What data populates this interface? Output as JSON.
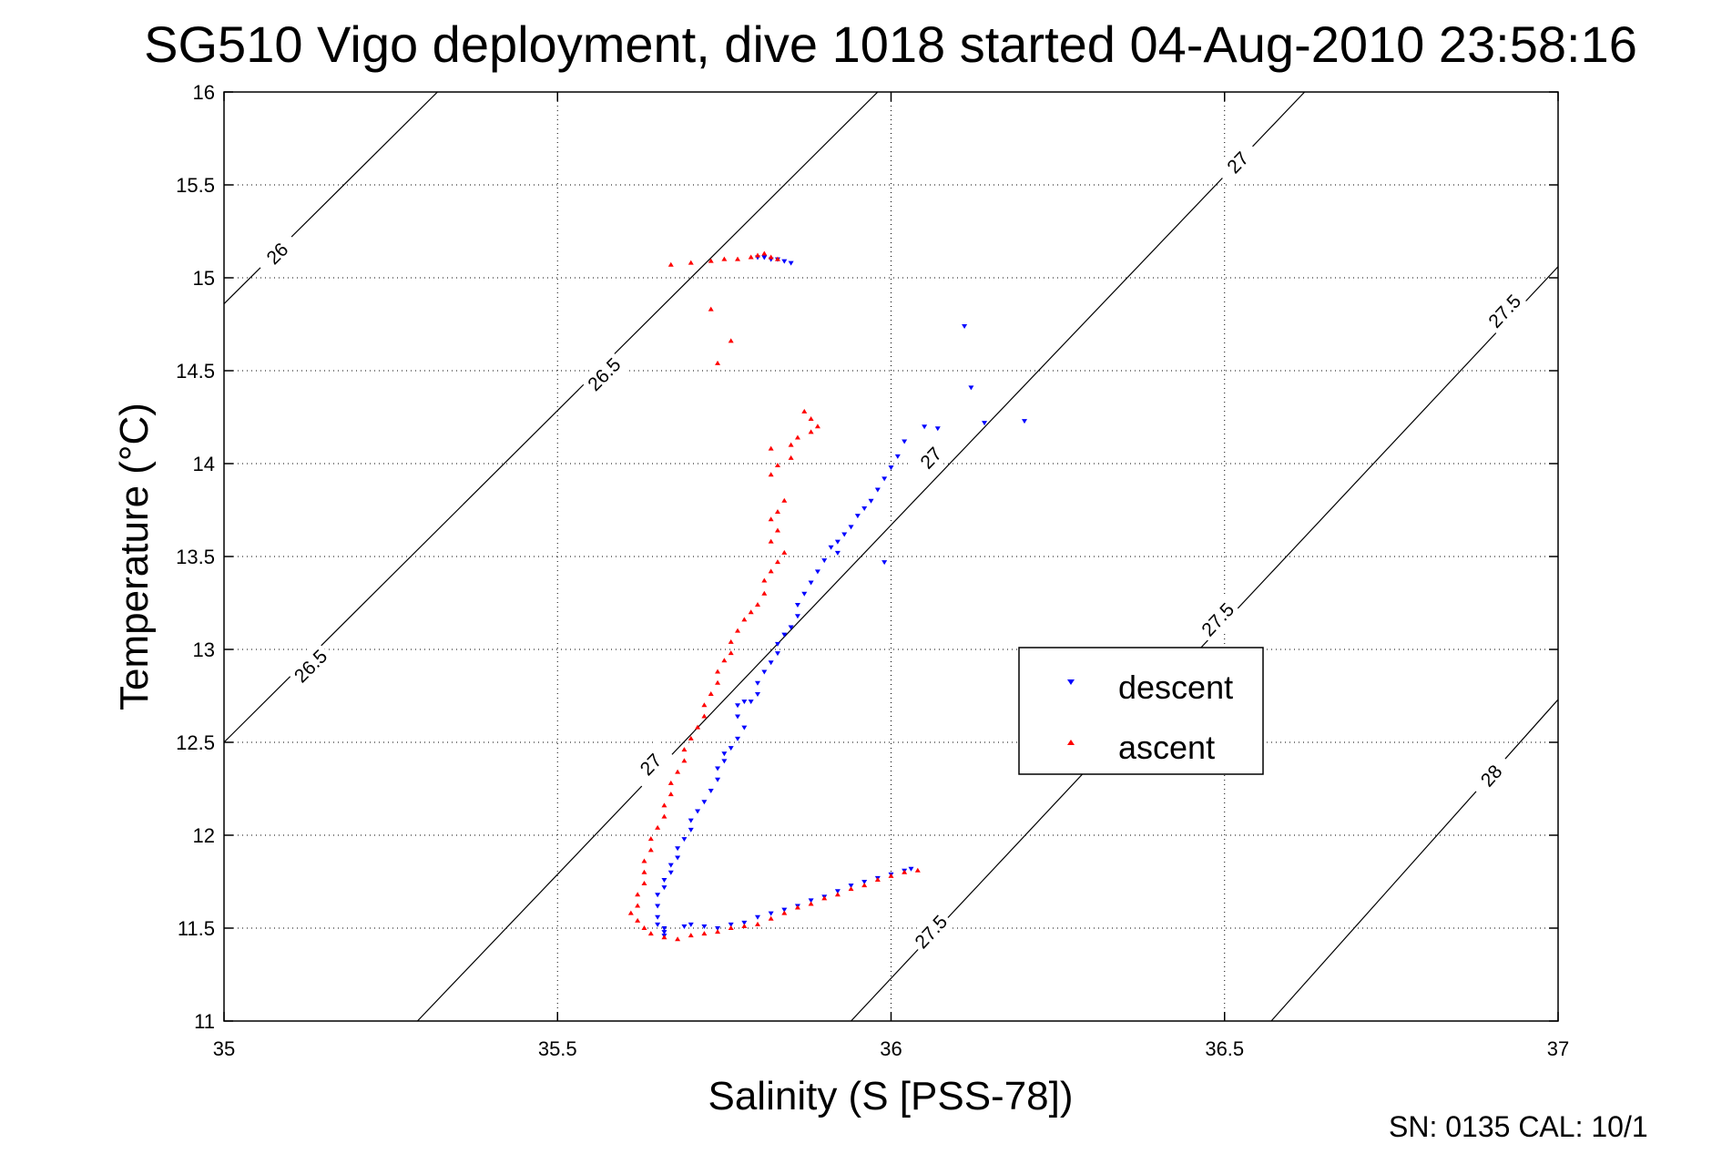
{
  "chart_data": {
    "type": "scatter",
    "title": "SG510 Vigo deployment, dive 1018 started 04-Aug-2010 23:58:16",
    "xlabel": "Salinity (S [PSS-78])",
    "ylabel": "Temperature (°C)",
    "xlim": [
      35,
      37
    ],
    "ylim": [
      11,
      16
    ],
    "x_ticks": [
      "35",
      "35.5",
      "36",
      "36.5",
      "37"
    ],
    "y_ticks": [
      "11",
      "11.5",
      "12",
      "12.5",
      "13",
      "13.5",
      "14",
      "14.5",
      "15",
      "15.5",
      "16"
    ],
    "grid": true,
    "legend_position": "right",
    "footer": "SN: 0135  CAL: 10/1",
    "density_contours": [
      {
        "label": "26",
        "points": [
          [
            35.0,
            14.86
          ],
          [
            35.32,
            16.0
          ]
        ],
        "label_at": [
          35.08,
          15.13
        ]
      },
      {
        "label": "26.5",
        "points": [
          [
            35.0,
            12.5
          ],
          [
            35.98,
            16.0
          ]
        ],
        "label_at": [
          35.13,
          12.91
        ],
        "label_at2": [
          35.57,
          14.48
        ]
      },
      {
        "label": "27",
        "points": [
          [
            35.29,
            11.0
          ],
          [
            36.62,
            16.0
          ]
        ],
        "label_at": [
          35.64,
          12.38
        ],
        "label_at2": [
          36.06,
          14.03
        ],
        "label_at3": [
          36.52,
          15.62
        ]
      },
      {
        "label": "27.5",
        "points": [
          [
            35.94,
            11.0
          ],
          [
            37.0,
            15.06
          ]
        ],
        "label_at": [
          36.06,
          11.48
        ],
        "label_at2": [
          36.49,
          13.16
        ],
        "label_at3": [
          36.92,
          14.82
        ]
      },
      {
        "label": "28",
        "points": [
          [
            36.57,
            11.0
          ],
          [
            37.0,
            12.73
          ]
        ],
        "label_at": [
          36.9,
          12.32
        ]
      }
    ],
    "series": [
      {
        "name": "descent",
        "color": "#0000ff",
        "marker": "triangle-down",
        "points": [
          [
            35.85,
            15.08
          ],
          [
            35.84,
            15.09
          ],
          [
            35.83,
            15.1
          ],
          [
            35.82,
            15.1
          ],
          [
            35.81,
            15.11
          ],
          [
            35.8,
            15.11
          ],
          [
            36.11,
            14.74
          ],
          [
            36.12,
            14.41
          ],
          [
            36.14,
            14.22
          ],
          [
            36.2,
            14.23
          ],
          [
            36.07,
            14.19
          ],
          [
            36.05,
            14.2
          ],
          [
            36.02,
            14.12
          ],
          [
            36.01,
            14.04
          ],
          [
            36.0,
            13.98
          ],
          [
            35.99,
            13.92
          ],
          [
            35.98,
            13.86
          ],
          [
            35.97,
            13.8
          ],
          [
            35.96,
            13.76
          ],
          [
            35.95,
            13.72
          ],
          [
            35.94,
            13.66
          ],
          [
            35.93,
            13.62
          ],
          [
            35.92,
            13.58
          ],
          [
            35.91,
            13.55
          ],
          [
            35.92,
            13.52
          ],
          [
            35.9,
            13.48
          ],
          [
            35.89,
            13.42
          ],
          [
            35.88,
            13.36
          ],
          [
            35.99,
            13.47
          ],
          [
            35.87,
            13.3
          ],
          [
            35.86,
            13.24
          ],
          [
            35.86,
            13.18
          ],
          [
            35.85,
            13.12
          ],
          [
            35.84,
            13.08
          ],
          [
            35.83,
            13.03
          ],
          [
            35.83,
            12.98
          ],
          [
            35.82,
            12.93
          ],
          [
            35.81,
            12.88
          ],
          [
            35.8,
            12.82
          ],
          [
            35.8,
            12.76
          ],
          [
            35.79,
            12.72
          ],
          [
            35.78,
            12.72
          ],
          [
            35.77,
            12.7
          ],
          [
            35.77,
            12.64
          ],
          [
            35.78,
            12.58
          ],
          [
            35.77,
            12.52
          ],
          [
            35.76,
            12.47
          ],
          [
            35.75,
            12.44
          ],
          [
            35.75,
            12.4
          ],
          [
            35.74,
            12.36
          ],
          [
            35.74,
            12.3
          ],
          [
            35.73,
            12.24
          ],
          [
            35.72,
            12.18
          ],
          [
            35.71,
            12.13
          ],
          [
            35.7,
            12.08
          ],
          [
            35.7,
            12.03
          ],
          [
            35.69,
            11.98
          ],
          [
            35.68,
            11.93
          ],
          [
            35.68,
            11.88
          ],
          [
            35.67,
            11.84
          ],
          [
            35.67,
            11.8
          ],
          [
            35.66,
            11.76
          ],
          [
            35.66,
            11.72
          ],
          [
            35.65,
            11.68
          ],
          [
            35.65,
            11.62
          ],
          [
            35.65,
            11.56
          ],
          [
            35.65,
            11.52
          ],
          [
            35.66,
            11.48
          ],
          [
            35.66,
            11.46
          ],
          [
            35.66,
            11.5
          ],
          [
            35.69,
            11.51
          ],
          [
            35.7,
            11.52
          ],
          [
            35.72,
            11.51
          ],
          [
            35.74,
            11.5
          ],
          [
            35.76,
            11.52
          ],
          [
            35.78,
            11.53
          ],
          [
            35.8,
            11.56
          ],
          [
            35.82,
            11.58
          ],
          [
            35.84,
            11.6
          ],
          [
            35.86,
            11.62
          ],
          [
            35.88,
            11.65
          ],
          [
            35.9,
            11.67
          ],
          [
            35.92,
            11.7
          ],
          [
            35.94,
            11.73
          ],
          [
            35.96,
            11.75
          ],
          [
            35.98,
            11.77
          ],
          [
            36.0,
            11.79
          ],
          [
            36.02,
            11.81
          ],
          [
            36.03,
            11.82
          ]
        ]
      },
      {
        "name": "ascent",
        "color": "#ff0000",
        "marker": "triangle-up",
        "points": [
          [
            35.67,
            15.07
          ],
          [
            35.7,
            15.08
          ],
          [
            35.73,
            15.09
          ],
          [
            35.75,
            15.1
          ],
          [
            35.77,
            15.1
          ],
          [
            35.79,
            15.11
          ],
          [
            35.8,
            15.12
          ],
          [
            35.81,
            15.13
          ],
          [
            35.82,
            15.11
          ],
          [
            35.83,
            15.1
          ],
          [
            35.73,
            14.83
          ],
          [
            35.76,
            14.66
          ],
          [
            35.74,
            14.54
          ],
          [
            35.87,
            14.28
          ],
          [
            35.88,
            14.24
          ],
          [
            35.89,
            14.2
          ],
          [
            35.88,
            14.17
          ],
          [
            35.86,
            14.14
          ],
          [
            35.85,
            14.1
          ],
          [
            35.82,
            14.08
          ],
          [
            35.85,
            14.03
          ],
          [
            35.83,
            13.99
          ],
          [
            35.82,
            13.94
          ],
          [
            35.84,
            13.8
          ],
          [
            35.83,
            13.74
          ],
          [
            35.82,
            13.7
          ],
          [
            35.83,
            13.64
          ],
          [
            35.82,
            13.58
          ],
          [
            35.84,
            13.52
          ],
          [
            35.83,
            13.47
          ],
          [
            35.82,
            13.42
          ],
          [
            35.81,
            13.37
          ],
          [
            35.81,
            13.3
          ],
          [
            35.8,
            13.24
          ],
          [
            35.79,
            13.2
          ],
          [
            35.78,
            13.16
          ],
          [
            35.77,
            13.1
          ],
          [
            35.76,
            13.04
          ],
          [
            35.76,
            12.98
          ],
          [
            35.75,
            12.94
          ],
          [
            35.74,
            12.88
          ],
          [
            35.74,
            12.82
          ],
          [
            35.73,
            12.76
          ],
          [
            35.72,
            12.7
          ],
          [
            35.72,
            12.64
          ],
          [
            35.71,
            12.58
          ],
          [
            35.7,
            12.52
          ],
          [
            35.69,
            12.46
          ],
          [
            35.69,
            12.4
          ],
          [
            35.68,
            12.34
          ],
          [
            35.67,
            12.28
          ],
          [
            35.67,
            12.22
          ],
          [
            35.66,
            12.16
          ],
          [
            35.66,
            12.1
          ],
          [
            35.65,
            12.04
          ],
          [
            35.64,
            11.98
          ],
          [
            35.64,
            11.92
          ],
          [
            35.63,
            11.86
          ],
          [
            35.63,
            11.8
          ],
          [
            35.63,
            11.74
          ],
          [
            35.62,
            11.68
          ],
          [
            35.62,
            11.62
          ],
          [
            35.61,
            11.58
          ],
          [
            35.62,
            11.54
          ],
          [
            35.63,
            11.5
          ],
          [
            35.64,
            11.47
          ],
          [
            35.66,
            11.45
          ],
          [
            35.68,
            11.44
          ],
          [
            35.7,
            11.46
          ],
          [
            35.72,
            11.47
          ],
          [
            35.74,
            11.48
          ],
          [
            35.76,
            11.5
          ],
          [
            35.78,
            11.51
          ],
          [
            35.8,
            11.52
          ],
          [
            35.82,
            11.55
          ],
          [
            35.84,
            11.58
          ],
          [
            35.86,
            11.61
          ],
          [
            35.88,
            11.63
          ],
          [
            35.9,
            11.66
          ],
          [
            35.92,
            11.68
          ],
          [
            35.94,
            11.71
          ],
          [
            35.96,
            11.73
          ],
          [
            35.98,
            11.76
          ],
          [
            36.0,
            11.78
          ],
          [
            36.02,
            11.8
          ],
          [
            36.04,
            11.81
          ]
        ]
      }
    ]
  }
}
